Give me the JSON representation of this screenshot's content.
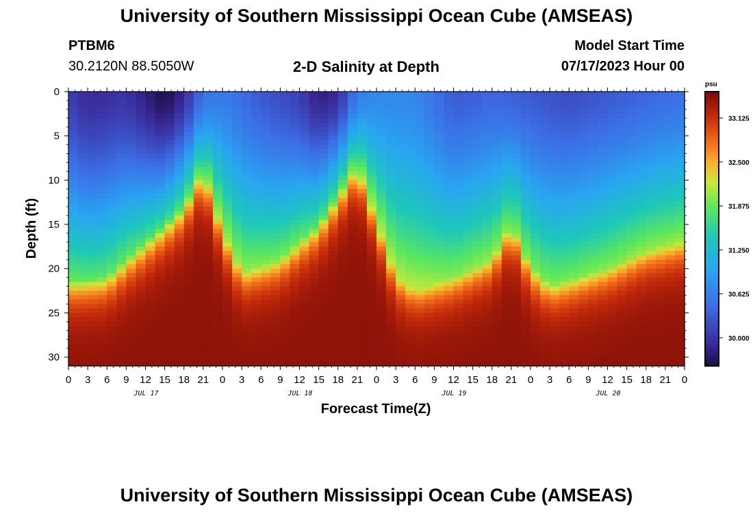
{
  "header": {
    "title": "University of Southern Mississippi Ocean Cube (AMSEAS)",
    "station_id": "PTBM6",
    "coordinates": "30.2120N  88.5050W",
    "plot_title": "2-D Salinity at Depth",
    "model_start_label": "Model Start Time",
    "model_start_value": "07/17/2023 Hour 00"
  },
  "footer": {
    "title": "University of Southern Mississippi Ocean Cube (AMSEAS)"
  },
  "chart_data": {
    "type": "heatmap",
    "title": "2-D Salinity at Depth",
    "xlabel": "Forecast Time(Z)",
    "ylabel": "Depth (ft)",
    "x_range_hours": [
      0,
      96
    ],
    "x_ticks": [
      "0",
      "3",
      "6",
      "9",
      "12",
      "15",
      "18",
      "21",
      "0",
      "3",
      "6",
      "9",
      "12",
      "15",
      "18",
      "21",
      "0",
      "3",
      "6",
      "9",
      "12",
      "15",
      "18",
      "21",
      "0",
      "3",
      "6",
      "9",
      "12",
      "15",
      "18",
      "21",
      "0"
    ],
    "day_labels": [
      "JUL 17",
      "JUL 18",
      "JUL 19",
      "JUL 20"
    ],
    "y_range_ft": [
      0,
      31
    ],
    "y_ticks": [
      0,
      5,
      10,
      15,
      20,
      25,
      30
    ],
    "colorbar": {
      "unit": "psu",
      "min": 29.6,
      "max": 33.5,
      "ticks": [
        "33.125",
        "32.500",
        "31.875",
        "31.250",
        "30.625",
        "30.000"
      ],
      "tick_values": [
        33.125,
        32.5,
        31.875,
        31.25,
        30.625,
        30.0
      ]
    },
    "halocline_depth_ft": [
      {
        "hour": 0,
        "depth": 21.5
      },
      {
        "hour": 6,
        "depth": 21
      },
      {
        "hour": 12,
        "depth": 17
      },
      {
        "hour": 18,
        "depth": 13
      },
      {
        "hour": 21,
        "depth": 9
      },
      {
        "hour": 24,
        "depth": 16
      },
      {
        "hour": 27,
        "depth": 20.5
      },
      {
        "hour": 33,
        "depth": 19
      },
      {
        "hour": 39,
        "depth": 15
      },
      {
        "hour": 45,
        "depth": 8.5
      },
      {
        "hour": 51,
        "depth": 21
      },
      {
        "hour": 54,
        "depth": 22.5
      },
      {
        "hour": 60,
        "depth": 21
      },
      {
        "hour": 66,
        "depth": 19
      },
      {
        "hour": 69,
        "depth": 15
      },
      {
        "hour": 72,
        "depth": 20
      },
      {
        "hour": 75,
        "depth": 22
      },
      {
        "hour": 84,
        "depth": 20
      },
      {
        "hour": 90,
        "depth": 18
      },
      {
        "hour": 96,
        "depth": 17
      }
    ],
    "surface_salinity_psu": [
      {
        "hour": 0,
        "value": 30.1
      },
      {
        "hour": 3,
        "value": 29.9
      },
      {
        "hour": 9,
        "value": 30.0
      },
      {
        "hour": 15,
        "value": 29.6
      },
      {
        "hour": 18,
        "value": 29.9
      },
      {
        "hour": 21,
        "value": 30.5
      },
      {
        "hour": 24,
        "value": 30.6
      },
      {
        "hour": 30,
        "value": 30.3
      },
      {
        "hour": 36,
        "value": 30.1
      },
      {
        "hour": 39,
        "value": 29.8
      },
      {
        "hour": 42,
        "value": 29.9
      },
      {
        "hour": 45,
        "value": 30.6
      },
      {
        "hour": 48,
        "value": 30.7
      },
      {
        "hour": 54,
        "value": 30.7
      },
      {
        "hour": 60,
        "value": 30.3
      },
      {
        "hour": 66,
        "value": 30.4
      },
      {
        "hour": 72,
        "value": 30.3
      },
      {
        "hour": 78,
        "value": 30.2
      },
      {
        "hour": 84,
        "value": 30.3
      },
      {
        "hour": 90,
        "value": 30.4
      },
      {
        "hour": 96,
        "value": 30.5
      }
    ],
    "bottom_salinity_psu": 33.4
  }
}
